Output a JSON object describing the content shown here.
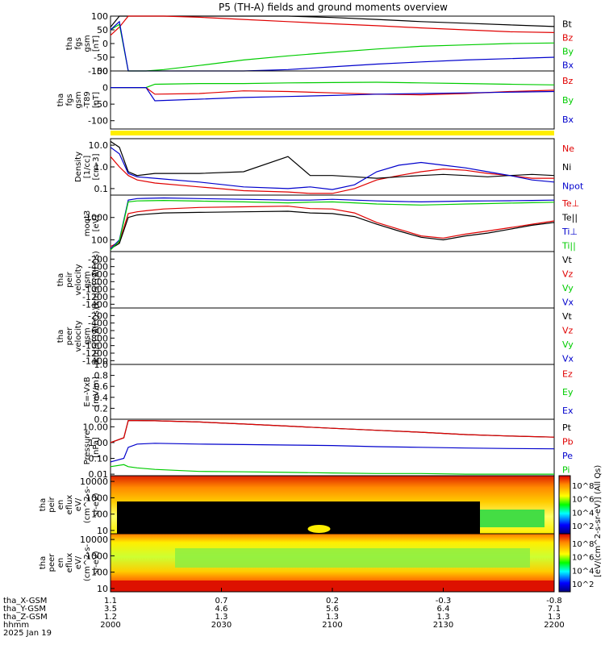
{
  "title": "P5 (TH-A) fields and ground moments overview",
  "colors": {
    "black": "#000000",
    "red": "#e00000",
    "green": "#00cc00",
    "blue": "#0000cc",
    "yellow": "#ffee00"
  },
  "x_axis": {
    "times": [
      "2000",
      "2030",
      "2100",
      "2130",
      "2200"
    ],
    "rows": [
      {
        "label": "tha_X-GSM",
        "values": [
          "1.1",
          "0.7",
          "0.2",
          "-0.3",
          "-0.8"
        ]
      },
      {
        "label": "tha_Y-GSM",
        "values": [
          "3.5",
          "4.6",
          "5.6",
          "6.4",
          "7.1"
        ]
      },
      {
        "label": "tha_Z-GSM",
        "values": [
          "1.2",
          "1.3",
          "1.3",
          "1.3",
          "1.3"
        ]
      },
      {
        "label": "hhmm",
        "values": [
          "2000",
          "2030",
          "2100",
          "2130",
          "2200"
        ]
      }
    ],
    "date": "2025 Jan 19"
  },
  "chart_data": [
    {
      "type": "line",
      "title": "",
      "ylabel": [
        "tha",
        "fgs",
        "gsm",
        "[nT]"
      ],
      "ylim": [
        -100,
        100
      ],
      "yticks": [
        "100",
        "50",
        "0",
        "-50",
        "-100"
      ],
      "x": [
        0,
        2,
        4,
        6,
        8,
        12,
        20,
        30,
        40,
        50,
        60,
        70,
        80,
        90,
        100
      ],
      "series": [
        {
          "name": "Bt",
          "values": [
            60,
            100,
            100,
            100,
            100,
            100,
            100,
            100,
            100,
            95,
            88,
            80,
            74,
            68,
            62
          ]
        },
        {
          "name": "Bz",
          "values": [
            30,
            60,
            100,
            100,
            100,
            100,
            96,
            88,
            80,
            72,
            65,
            57,
            50,
            43,
            40
          ]
        },
        {
          "name": "By",
          "values": [
            50,
            70,
            -100,
            -100,
            -100,
            -95,
            -80,
            -60,
            -45,
            -32,
            -20,
            -10,
            -5,
            0,
            2
          ]
        },
        {
          "name": "Bx",
          "values": [
            50,
            80,
            -100,
            -100,
            -100,
            -100,
            -100,
            -100,
            -95,
            -85,
            -75,
            -67,
            -60,
            -55,
            -50
          ]
        }
      ]
    },
    {
      "type": "line",
      "title": "",
      "ylabel": [
        "tha",
        "fgs",
        "gsm",
        "-T89",
        "[nT]"
      ],
      "ylim": [
        -125,
        50
      ],
      "yticks": [
        "50",
        "0",
        "-50",
        "-100"
      ],
      "x": [
        0,
        8,
        10,
        20,
        30,
        40,
        50,
        60,
        70,
        80,
        90,
        100
      ],
      "series": [
        {
          "name": "Bz",
          "values": [
            0,
            0,
            -20,
            -18,
            -10,
            -12,
            -16,
            -20,
            -22,
            -18,
            -12,
            -8
          ]
        },
        {
          "name": "By",
          "values": [
            0,
            0,
            10,
            12,
            12,
            14,
            15,
            16,
            14,
            12,
            10,
            8
          ]
        },
        {
          "name": "Bx",
          "values": [
            0,
            0,
            -40,
            -35,
            -30,
            -27,
            -24,
            -20,
            -18,
            -16,
            -14,
            -12
          ]
        }
      ]
    },
    {
      "type": "line",
      "title": "",
      "ylabel": [
        "Density",
        "[1/cc]",
        "[cm-3]"
      ],
      "yscale": "log",
      "ylim": [
        0.05,
        20
      ],
      "yticks": [
        "10.0",
        "1.0",
        "0.1"
      ],
      "x": [
        0,
        2,
        4,
        6,
        10,
        20,
        30,
        40,
        45,
        50,
        55,
        60,
        65,
        70,
        75,
        80,
        85,
        90,
        95,
        100
      ],
      "series": [
        {
          "name": "Ne",
          "values": [
            3,
            1,
            0.4,
            0.25,
            0.18,
            0.12,
            0.08,
            0.07,
            0.06,
            0.06,
            0.1,
            0.25,
            0.4,
            0.6,
            0.8,
            0.7,
            0.5,
            0.4,
            0.3,
            0.3
          ]
        },
        {
          "name": "Ni",
          "values": [
            15,
            8,
            0.6,
            0.4,
            0.5,
            0.5,
            0.6,
            3,
            0.4,
            0.4,
            0.35,
            0.3,
            0.35,
            0.4,
            0.45,
            0.4,
            0.35,
            0.4,
            0.45,
            0.4
          ]
        },
        {
          "name": "Npot",
          "values": [
            8,
            4,
            0.5,
            0.35,
            0.3,
            0.2,
            0.12,
            0.1,
            0.12,
            0.09,
            0.15,
            0.6,
            1.2,
            1.6,
            1.2,
            0.9,
            0.6,
            0.4,
            0.25,
            0.2
          ]
        }
      ]
    },
    {
      "type": "line",
      "title": "",
      "ylabel": [
        "moqt3",
        "[eV]"
      ],
      "yscale": "log",
      "ylim": [
        30,
        10000
      ],
      "yticks": [
        "1000",
        "100"
      ],
      "x": [
        0,
        2,
        4,
        6,
        8,
        12,
        20,
        30,
        40,
        45,
        50,
        55,
        60,
        65,
        70,
        75,
        80,
        85,
        90,
        95,
        100
      ],
      "series": [
        {
          "name": "Te⊥",
          "values": [
            50,
            80,
            1500,
            1800,
            2000,
            2400,
            2800,
            3000,
            3200,
            2500,
            2400,
            1600,
            600,
            300,
            150,
            120,
            180,
            250,
            350,
            500,
            700
          ]
        },
        {
          "name": "Te||",
          "values": [
            40,
            70,
            1000,
            1300,
            1400,
            1600,
            1700,
            1800,
            1900,
            1600,
            1500,
            1100,
            500,
            250,
            130,
            100,
            150,
            200,
            300,
            450,
            600
          ]
        },
        {
          "name": "Ti⊥",
          "values": [
            40,
            100,
            6000,
            7000,
            7200,
            7500,
            7000,
            6500,
            6000,
            6000,
            6500,
            6000,
            5500,
            5200,
            5000,
            5200,
            5400,
            5500,
            5600,
            5800,
            6000
          ]
        },
        {
          "name": "Ti||",
          "values": [
            35,
            90,
            5000,
            5500,
            5600,
            5800,
            5400,
            5000,
            4500,
            4800,
            5000,
            4500,
            4000,
            3800,
            3600,
            3800,
            4000,
            4200,
            4400,
            4600,
            4800
          ]
        }
      ]
    },
    {
      "type": "line",
      "title": "",
      "ylabel": [
        "tha",
        "peir",
        "velocity",
        "gsm",
        "[km/s] (All Qs)"
      ],
      "ylim": [
        -1500,
        0
      ],
      "yticks": [
        "-200",
        "-400",
        "-600",
        "-800",
        "-1000",
        "-1200",
        "-1400"
      ],
      "series_names": [
        "Vt",
        "Vz",
        "Vy",
        "Vx"
      ]
    },
    {
      "type": "line",
      "title": "",
      "ylabel": [
        "tha",
        "peer",
        "velocity",
        "gsm",
        "[km/s] (All Qs)"
      ],
      "ylim": [
        -1500,
        0
      ],
      "yticks": [
        "-200",
        "-400",
        "-600",
        "-800",
        "-1000",
        "-1200",
        "-1400"
      ],
      "series_names": [
        "Vt",
        "Vz",
        "Vy",
        "Vx"
      ]
    },
    {
      "type": "line",
      "title": "",
      "ylabel": [
        "E=-VxB",
        "[mV/m]"
      ],
      "ylim": [
        0,
        1
      ],
      "yticks": [
        "1.0",
        "0.8",
        "0.6",
        "0.4",
        "0.2",
        "0.0"
      ],
      "series_names": [
        "Ez",
        "Ey",
        "Ex"
      ]
    },
    {
      "type": "line",
      "title": "",
      "ylabel": [
        "Pressure",
        "[nPa]"
      ],
      "yscale": "log",
      "ylim": [
        0.008,
        30
      ],
      "yticks": [
        "10.00",
        "1.00",
        "0.10",
        "0.01"
      ],
      "x": [
        0,
        3,
        4,
        6,
        10,
        20,
        30,
        40,
        50,
        60,
        70,
        80,
        90,
        100
      ],
      "series": [
        {
          "name": "Pt",
          "values": [
            1,
            2,
            25,
            25,
            24,
            20,
            15,
            11,
            8,
            6,
            4.5,
            3.2,
            2.6,
            2.2
          ]
        },
        {
          "name": "Pb",
          "values": [
            1,
            2,
            25,
            25,
            24,
            20,
            15,
            11,
            8,
            6,
            4.5,
            3.2,
            2.6,
            2.2
          ]
        },
        {
          "name": "Pe",
          "values": [
            0.06,
            0.1,
            0.5,
            0.8,
            0.9,
            0.8,
            0.75,
            0.7,
            0.65,
            0.55,
            0.5,
            0.45,
            0.42,
            0.4
          ]
        },
        {
          "name": "Pi",
          "values": [
            0.03,
            0.04,
            0.03,
            0.025,
            0.02,
            0.015,
            0.014,
            0.013,
            0.012,
            0.011,
            0.011,
            0.01,
            0.01,
            0.01
          ]
        }
      ]
    },
    {
      "type": "heatmap",
      "title": "",
      "ylabel": [
        "tha",
        "peir",
        "en",
        "eflux",
        "eV/",
        "(cm^2-s-",
        "sr-eV)"
      ],
      "yscale": "log",
      "yticks": [
        "10000",
        "1000",
        "100",
        "10"
      ],
      "colorbar": {
        "ticks": [
          "10^8",
          "10^6",
          "10^4",
          "10^2"
        ],
        "label": "[eV/(cm^2-s-sr-eV)] (All Qs)"
      }
    },
    {
      "type": "heatmap",
      "title": "",
      "ylabel": [
        "tha",
        "peer",
        "en",
        "eflux",
        "eV/",
        "(cm^2-s-",
        "sr-eV)"
      ],
      "yscale": "log",
      "yticks": [
        "10000",
        "1000",
        "100",
        "10"
      ],
      "colorbar": {
        "ticks": [
          "10^8",
          "10^6",
          "10^4",
          "10^2"
        ],
        "label": "[eV/(cm^2-s-sr-eV)] (All Qs)"
      }
    }
  ]
}
